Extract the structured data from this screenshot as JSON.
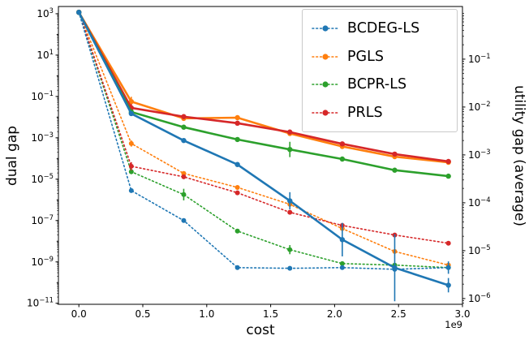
{
  "legend": {
    "entries": [
      {
        "label": "BCDEG-LS",
        "color": "#1f77b4"
      },
      {
        "label": "PGLS",
        "color": "#ff7f0e"
      },
      {
        "label": "BCPR-LS",
        "color": "#2ca02c"
      },
      {
        "label": "PRLS",
        "color": "#d62728"
      }
    ]
  },
  "chart_data": {
    "type": "line",
    "x_axis": {
      "label": "cost",
      "offset_label": "1e9",
      "ticks": [
        "0.0",
        "0.5",
        "1.0",
        "1.5",
        "2.0",
        "2.5",
        "3.0"
      ],
      "range": [
        -0.16,
        3.0
      ]
    },
    "left_axis": {
      "label": "dual gap",
      "scale": "log",
      "tick_exponents": [
        3,
        1,
        -1,
        -3,
        -5,
        -7,
        -9,
        -11
      ],
      "range_log": [
        -11.05,
        3.35
      ]
    },
    "right_axis": {
      "label": "utility gap (average)",
      "scale": "log",
      "tick_exponents": [
        -1,
        -2,
        -3,
        -4,
        -5,
        -6
      ],
      "range_log": [
        -6.12,
        0.1
      ]
    },
    "x_values_1e9": [
      0.0,
      0.41,
      0.82,
      1.24,
      1.65,
      2.06,
      2.47,
      2.89
    ],
    "series": [
      {
        "name": "PGLS",
        "style": "dotted",
        "axis": "left",
        "color": "#ff7f0e",
        "values": [
          1200,
          0.00053,
          1.9e-05,
          4e-06,
          6.1e-07,
          4.1e-08,
          3.2e-09,
          7e-10
        ],
        "err_decades": [
          0,
          0.15,
          0,
          0,
          0,
          0,
          0,
          0
        ]
      },
      {
        "name": "BCPR-LS",
        "style": "dotted",
        "axis": "left",
        "color": "#2ca02c",
        "values": [
          1200,
          2.3e-05,
          1.8e-06,
          3.1e-08,
          3.9e-09,
          8.3e-10,
          7e-10,
          5.3e-10
        ],
        "err_decades": [
          0,
          0.12,
          0.28,
          0,
          0.22,
          0,
          0,
          0
        ]
      },
      {
        "name": "PRLS",
        "style": "dotted",
        "axis": "left",
        "color": "#d62728",
        "values": [
          1200,
          4.2e-05,
          1.3e-05,
          2.2e-06,
          2.5e-07,
          5.8e-08,
          2e-08,
          8e-09
        ],
        "err_decades": [
          0,
          0.2,
          0,
          0,
          0,
          0,
          0,
          0
        ]
      },
      {
        "name": "BCDEG-LS",
        "style": "dotted",
        "axis": "left",
        "color": "#1f77b4",
        "values": [
          1200,
          2.8e-06,
          1e-07,
          5.3e-10,
          4.9e-10,
          5.3e-10,
          4.4e-10,
          5.3e-10
        ],
        "err_decades": [
          0,
          0,
          0,
          0,
          0,
          0,
          0,
          0.3
        ]
      },
      {
        "name": "PGLS",
        "style": "solid",
        "axis": "right",
        "color": "#ff7f0e",
        "values": [
          0.95,
          0.013,
          0.0058,
          0.006,
          0.0028,
          0.0015,
          0.00092,
          0.0007
        ],
        "err_decades": [
          0,
          0.1,
          0,
          0,
          0,
          0,
          0,
          0
        ]
      },
      {
        "name": "PRLS",
        "style": "solid",
        "axis": "right",
        "color": "#d62728",
        "values": [
          0.95,
          0.0096,
          0.0063,
          0.0046,
          0.003,
          0.0017,
          0.00104,
          0.00073
        ],
        "err_decades": [
          0,
          0.08,
          0,
          0,
          0,
          0,
          0,
          0
        ]
      },
      {
        "name": "BCPR-LS",
        "style": "solid",
        "axis": "right",
        "color": "#2ca02c",
        "values": [
          0.95,
          0.0079,
          0.0038,
          0.0021,
          0.0013,
          0.00082,
          0.00048,
          0.00036
        ],
        "err_decades": [
          0,
          0,
          0,
          0,
          0.16,
          0,
          0,
          0
        ]
      },
      {
        "name": "BCDEG-LS",
        "style": "solid",
        "axis": "right",
        "color": "#1f77b4",
        "values": [
          0.95,
          0.0073,
          0.002,
          0.00063,
          0.00011,
          1.7e-05,
          4.4e-06,
          1.9e-06
        ],
        "err_decades": [
          0,
          0,
          0,
          0,
          0.18,
          0.35,
          0.7,
          0.15
        ]
      }
    ]
  }
}
